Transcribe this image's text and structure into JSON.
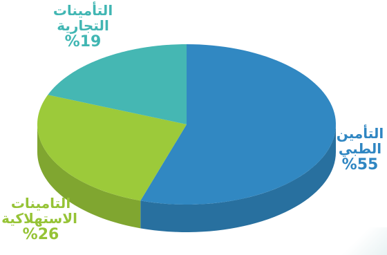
{
  "chart_data": {
    "type": "pie",
    "title": "",
    "categories": [
      "التأمين الطبي",
      "التامينات الاستهلاكية",
      "التأمينات التجارية"
    ],
    "values": [
      55,
      26,
      19
    ],
    "unit": "%",
    "colors": [
      "#3188c2",
      "#9cca3a",
      "#45b7b3"
    ]
  },
  "labels": {
    "medical": {
      "line1": "التأمين",
      "line2": "الطبي",
      "pct": "%55"
    },
    "consumer": {
      "line1": "التامينات",
      "line2": "الاستهلاكية",
      "pct": "%26"
    },
    "commercial": {
      "line1": "التأمينات",
      "line2": "التجارية",
      "pct": "%19"
    }
  }
}
